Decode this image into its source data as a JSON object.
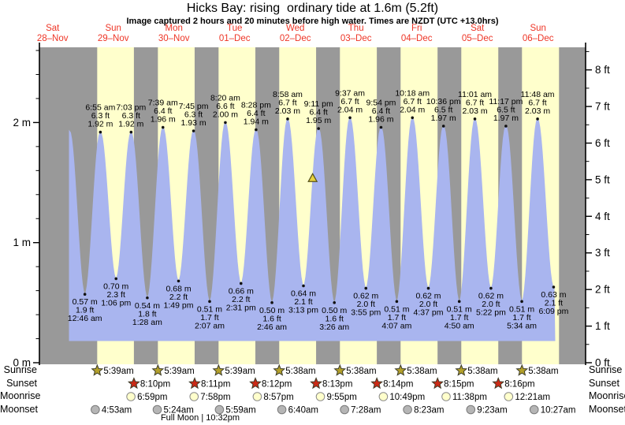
{
  "title": "Hicks Bay: rising  ordinary tide at 1.6m (5.2ft)",
  "subtitle": "Image captured 2 hours and 20 minutes before high water. Times are NZDT (UTC +13.0hrs)",
  "colors": {
    "day_band": "#ffffcc",
    "night_band": "#999999",
    "tide_fill": "#a9b5ef",
    "date_label": "#ee3526",
    "annotation_text": "#000000",
    "sunrise_star": "#b3a02b",
    "sunset_star": "#cc2a16",
    "moonrise_circle": "#ffffcc",
    "moonset_circle": "#b5b5b5",
    "current_marker": "#e8d23e"
  },
  "chart_data": {
    "type": "area",
    "title": "Hicks Bay tide height curve",
    "xlabel": "",
    "ylabel_left": "metres",
    "ylabel_right": "feet",
    "ylim_m": [
      0,
      2.64
    ],
    "grid": false,
    "x_days": [
      {
        "dow": "Sat",
        "date": "28–Nov"
      },
      {
        "dow": "Sun",
        "date": "29–Nov"
      },
      {
        "dow": "Mon",
        "date": "30–Nov"
      },
      {
        "dow": "Tue",
        "date": "01–Dec"
      },
      {
        "dow": "Wed",
        "date": "02–Dec"
      },
      {
        "dow": "Thu",
        "date": "03–Dec"
      },
      {
        "dow": "Fri",
        "date": "04–Dec"
      },
      {
        "dow": "Sat",
        "date": "05–Dec"
      },
      {
        "dow": "Sun",
        "date": "06–Dec"
      }
    ],
    "y_axis_left_ticks": [
      "0 m",
      "1 m",
      "2 m"
    ],
    "y_axis_right_ticks": [
      "0 ft",
      "1 ft",
      "2 ft",
      "3 ft",
      "4 ft",
      "5 ft",
      "6 ft",
      "7 ft",
      "8 ft"
    ],
    "tide_events": [
      {
        "day": 1,
        "time": "12:46 am",
        "type": "low",
        "height_m": "0.57",
        "height_ft": "1.9"
      },
      {
        "day": 1,
        "time": "6:55 am",
        "type": "high",
        "height_m": "1.92",
        "height_ft": "6.3"
      },
      {
        "day": 1,
        "time": "1:06 pm",
        "type": "low",
        "height_m": "0.70",
        "height_ft": "2.3"
      },
      {
        "day": 1,
        "time": "7:03 pm",
        "type": "high",
        "height_m": "1.92",
        "height_ft": "6.3"
      },
      {
        "day": 2,
        "time": "1:28 am",
        "type": "low",
        "height_m": "0.54",
        "height_ft": "1.8"
      },
      {
        "day": 2,
        "time": "7:39 am",
        "type": "high",
        "height_m": "1.96",
        "height_ft": "6.4"
      },
      {
        "day": 2,
        "time": "1:49 pm",
        "type": "low",
        "height_m": "0.68",
        "height_ft": "2.2"
      },
      {
        "day": 2,
        "time": "7:45 pm",
        "type": "high",
        "height_m": "1.93",
        "height_ft": "6.3"
      },
      {
        "day": 3,
        "time": "2:07 am",
        "type": "low",
        "height_m": "0.51",
        "height_ft": "1.7"
      },
      {
        "day": 3,
        "time": "8:20 am",
        "type": "high",
        "height_m": "2.00",
        "height_ft": "6.6"
      },
      {
        "day": 3,
        "time": "2:31 pm",
        "type": "low",
        "height_m": "0.66",
        "height_ft": "2.2"
      },
      {
        "day": 3,
        "time": "8:28 pm",
        "type": "high",
        "height_m": "1.94",
        "height_ft": "6.4"
      },
      {
        "day": 4,
        "time": "2:46 am",
        "type": "low",
        "height_m": "0.50",
        "height_ft": "1.6"
      },
      {
        "day": 4,
        "time": "8:58 am",
        "type": "high",
        "height_m": "2.03",
        "height_ft": "6.7"
      },
      {
        "day": 4,
        "time": "3:13 pm",
        "type": "low",
        "height_m": "0.64",
        "height_ft": "2.1"
      },
      {
        "day": 4,
        "time": "9:11 pm",
        "type": "high",
        "height_m": "1.95",
        "height_ft": "6.4"
      },
      {
        "day": 5,
        "time": "3:26 am",
        "type": "low",
        "height_m": "0.50",
        "height_ft": "1.6"
      },
      {
        "day": 5,
        "time": "9:37 am",
        "type": "high",
        "height_m": "2.04",
        "height_ft": "6.7"
      },
      {
        "day": 5,
        "time": "3:55 pm",
        "type": "low",
        "height_m": "0.62",
        "height_ft": "2.0"
      },
      {
        "day": 5,
        "time": "9:54 pm",
        "type": "high",
        "height_m": "1.96",
        "height_ft": "6.4"
      },
      {
        "day": 6,
        "time": "4:07 am",
        "type": "low",
        "height_m": "0.51",
        "height_ft": "1.7"
      },
      {
        "day": 6,
        "time": "10:18 am",
        "type": "high",
        "height_m": "2.04",
        "height_ft": "6.7"
      },
      {
        "day": 6,
        "time": "4:37 pm",
        "type": "low",
        "height_m": "0.62",
        "height_ft": "2.0"
      },
      {
        "day": 6,
        "time": "10:36 pm",
        "type": "high",
        "height_m": "1.97",
        "height_ft": "6.5"
      },
      {
        "day": 7,
        "time": "4:50 am",
        "type": "low",
        "height_m": "0.51",
        "height_ft": "1.7"
      },
      {
        "day": 7,
        "time": "11:01 am",
        "type": "high",
        "height_m": "2.03",
        "height_ft": "6.7"
      },
      {
        "day": 7,
        "time": "5:22 pm",
        "type": "low",
        "height_m": "0.62",
        "height_ft": "2.0"
      },
      {
        "day": 7,
        "time": "11:17 pm",
        "type": "high",
        "height_m": "1.97",
        "height_ft": "6.5"
      },
      {
        "day": 8,
        "time": "5:34 am",
        "type": "low",
        "height_m": "0.51",
        "height_ft": "1.7"
      },
      {
        "day": 8,
        "time": "11:48 am",
        "type": "high",
        "height_m": "2.03",
        "height_ft": "6.7"
      },
      {
        "day": 8,
        "time": "6:09 pm",
        "type": "low",
        "height_m": "0.63",
        "height_ft": "2.1"
      }
    ],
    "current_position_marker": {
      "height_m": "1.6",
      "state": "rising",
      "day": 4,
      "before_high_at": "9:11 pm",
      "offset_hours_before_high": 2.333
    }
  },
  "astro": {
    "rows": [
      {
        "label": "Sunrise",
        "icon": "sunrise-star-icon",
        "events": [
          {
            "day": 1,
            "time": "5:39am"
          },
          {
            "day": 2,
            "time": "5:39am"
          },
          {
            "day": 3,
            "time": "5:39am"
          },
          {
            "day": 4,
            "time": "5:38am"
          },
          {
            "day": 5,
            "time": "5:38am"
          },
          {
            "day": 6,
            "time": "5:38am"
          },
          {
            "day": 7,
            "time": "5:38am"
          },
          {
            "day": 8,
            "time": "5:38am"
          }
        ]
      },
      {
        "label": "Sunset",
        "icon": "sunset-star-icon",
        "events": [
          {
            "day": 1,
            "time": "8:10pm"
          },
          {
            "day": 2,
            "time": "8:11pm"
          },
          {
            "day": 3,
            "time": "8:12pm"
          },
          {
            "day": 4,
            "time": "8:13pm"
          },
          {
            "day": 5,
            "time": "8:14pm"
          },
          {
            "day": 6,
            "time": "8:15pm"
          },
          {
            "day": 7,
            "time": "8:16pm"
          }
        ]
      },
      {
        "label": "Moonrise",
        "icon": "moonrise-icon",
        "events": [
          {
            "day": 1,
            "time": "6:59pm"
          },
          {
            "day": 2,
            "time": "7:58pm"
          },
          {
            "day": 3,
            "time": "8:57pm"
          },
          {
            "day": 4,
            "time": "9:55pm"
          },
          {
            "day": 5,
            "time": "10:49pm"
          },
          {
            "day": 6,
            "time": "11:38pm"
          },
          {
            "day": 8,
            "time": "12:21am"
          }
        ]
      },
      {
        "label": "Moonset",
        "icon": "moonset-icon",
        "events": [
          {
            "day": 1,
            "time": "4:53am"
          },
          {
            "day": 2,
            "time": "5:24am"
          },
          {
            "day": 3,
            "time": "5:59am"
          },
          {
            "day": 4,
            "time": "6:40am"
          },
          {
            "day": 5,
            "time": "7:28am"
          },
          {
            "day": 6,
            "time": "8:23am"
          },
          {
            "day": 7,
            "time": "9:23am"
          },
          {
            "day": 8,
            "time": "10:27am"
          }
        ]
      }
    ],
    "footnote": "Full Moon | 10:32pm"
  }
}
